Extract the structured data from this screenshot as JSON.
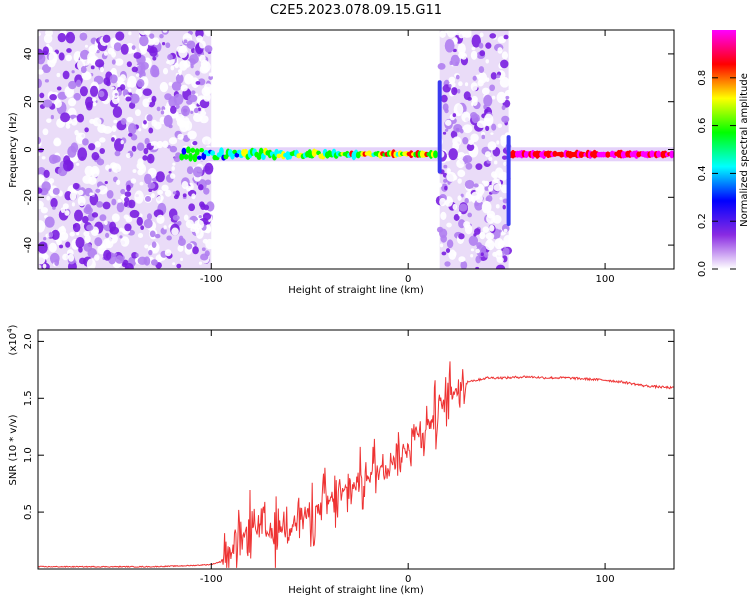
{
  "title": "C2E5.2023.078.09.15.G11",
  "chart_data": [
    {
      "type": "heatmap",
      "name": "spectrogram",
      "xlabel": "Height of straight line (km)",
      "ylabel": "Frequency (Hz)",
      "xlim": [
        -188,
        135
      ],
      "ylim": [
        -50,
        50
      ],
      "x_ticks": [
        -100,
        0,
        100
      ],
      "y_ticks": [
        -40,
        -20,
        0,
        20,
        40
      ],
      "colorbar": {
        "label": "Normalized spectral amplitude",
        "range": [
          0,
          1
        ],
        "ticks": [
          0.0,
          0.2,
          0.4,
          0.6,
          0.8
        ],
        "colormap": [
          "#ffffff",
          "#8a2be2",
          "#0000ff",
          "#00ffff",
          "#00ff00",
          "#ffff00",
          "#ff0000",
          "#ff00ff"
        ]
      },
      "noise_bands_km": [
        [
          -188,
          -100
        ],
        [
          16,
          51
        ]
      ],
      "signal_track_km": [
        [
          -115,
          15
        ],
        [
          51,
          135
        ]
      ],
      "signal_freq_hz": -2
    },
    {
      "type": "line",
      "name": "snr",
      "xlabel": "Height of straight line (km)",
      "ylabel": "SNR (10 * v/v)",
      "y_multiplier": "(x10",
      "y_multiplier_exp": "4",
      "y_multiplier_close": ")",
      "xlim": [
        -188,
        135
      ],
      "ylim": [
        0,
        2.1
      ],
      "x_ticks": [
        -100,
        0,
        100
      ],
      "y_ticks": [
        0.5,
        1.0,
        1.5,
        2.0
      ],
      "y_tick_labels": [
        "0.5",
        "1.0",
        "1.5",
        "2.0"
      ],
      "color": "#ee3333",
      "series": [
        {
          "x": [
            -188,
            -160,
            -130,
            -110,
            -100,
            -92,
            -88,
            -84,
            -80,
            -76,
            -70,
            -62,
            -54,
            -46,
            -40,
            -34,
            -30,
            -26,
            -22,
            -18,
            -15,
            -12,
            -9,
            -6,
            -3,
            0,
            4,
            8,
            12,
            16,
            20,
            24,
            28,
            30,
            35,
            40,
            50,
            60,
            70,
            80,
            90,
            100,
            110,
            120,
            135
          ],
          "y": [
            0.02,
            0.02,
            0.02,
            0.03,
            0.04,
            0.08,
            0.15,
            0.25,
            0.4,
            0.35,
            0.3,
            0.4,
            0.45,
            0.5,
            0.6,
            0.65,
            0.7,
            0.75,
            0.8,
            0.85,
            0.85,
            0.95,
            0.95,
            1.0,
            1.0,
            1.1,
            1.2,
            1.25,
            1.3,
            1.4,
            1.5,
            1.58,
            1.62,
            1.65,
            1.66,
            1.68,
            1.68,
            1.69,
            1.68,
            1.68,
            1.67,
            1.66,
            1.64,
            1.61,
            1.59
          ]
        }
      ]
    }
  ]
}
